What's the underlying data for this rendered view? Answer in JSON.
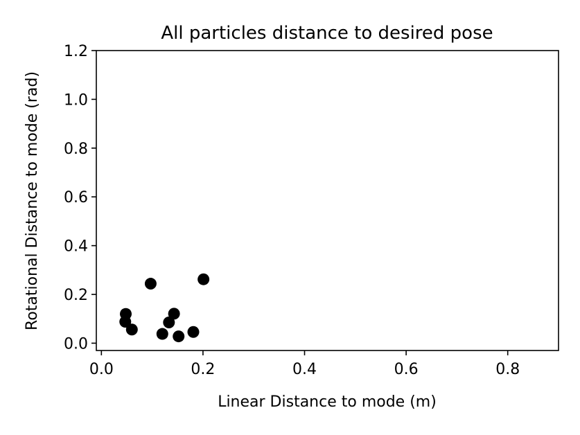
{
  "chart_data": {
    "type": "scatter",
    "title": "All particles distance to desired pose",
    "xlabel": "Linear Distance to mode (m)",
    "ylabel": "Rotational Distance to mode (rad)",
    "xlim": [
      -0.01,
      0.9
    ],
    "ylim": [
      -0.03,
      1.2
    ],
    "xticks": [
      0.0,
      0.2,
      0.4,
      0.6,
      0.8
    ],
    "xtick_labels": [
      "0.0",
      "0.2",
      "0.4",
      "0.6",
      "0.8"
    ],
    "yticks": [
      0.0,
      0.2,
      0.4,
      0.6,
      0.8,
      1.0,
      1.2
    ],
    "ytick_labels": [
      "0.0",
      "0.2",
      "0.4",
      "0.6",
      "0.8",
      "1.0",
      "1.2"
    ],
    "grid": false,
    "marker_color": "#000000",
    "x": [
      0.048,
      0.047,
      0.06,
      0.097,
      0.12,
      0.133,
      0.143,
      0.152,
      0.181,
      0.201
    ],
    "y": [
      0.12,
      0.088,
      0.056,
      0.244,
      0.038,
      0.085,
      0.121,
      0.028,
      0.046,
      0.262
    ]
  }
}
